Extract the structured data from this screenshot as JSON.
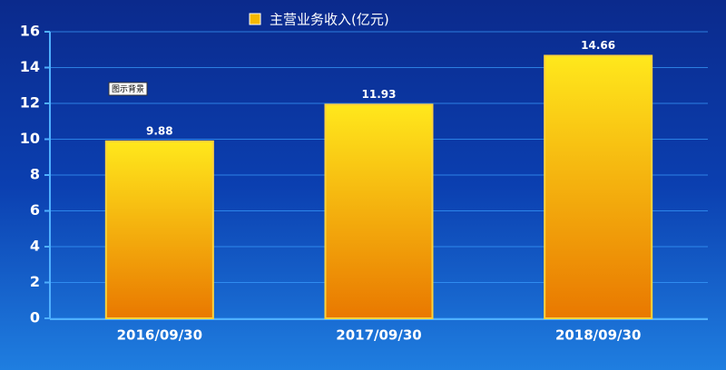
{
  "chart_data": {
    "type": "bar",
    "legend": "主营业务收入(亿元)",
    "annotation": "图示背景",
    "categories": [
      "2016/09/30",
      "2017/09/30",
      "2018/09/30"
    ],
    "values": [
      9.88,
      11.93,
      14.66
    ],
    "value_labels": [
      "9.88",
      "11.93",
      "14.66"
    ],
    "colors": [
      "#ffe81c",
      "#e97800"
    ],
    "ylim": [
      0,
      16
    ],
    "yticks": [
      0,
      2,
      4,
      6,
      8,
      10,
      12,
      14,
      16
    ],
    "grid": true
  }
}
